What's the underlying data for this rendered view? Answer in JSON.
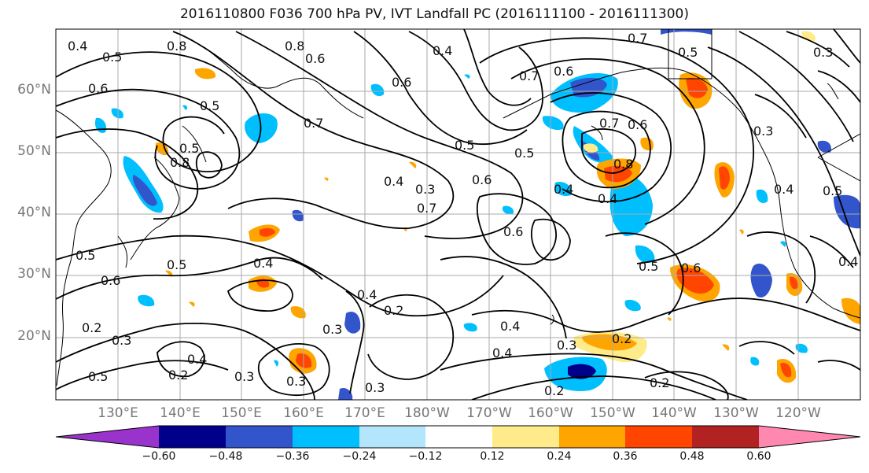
{
  "title": "2016110800 F036 700 hPa PV, IVT Landfall PC (2016111100 - 2016111300)",
  "lat_labels": [
    "60°N",
    "50°N",
    "40°N",
    "30°N",
    "20°N"
  ],
  "lon_labels": [
    "130°E",
    "140°E",
    "150°E",
    "160°E",
    "170°E",
    "180°W",
    "170°W",
    "160°W",
    "150°W",
    "140°W",
    "130°W",
    "120°W"
  ],
  "colorbar": {
    "ticks": [
      "−0.60",
      "−0.48",
      "−0.36",
      "−0.24",
      "−0.12",
      "0.12",
      "0.24",
      "0.36",
      "0.48",
      "0.60"
    ],
    "colors": [
      "#9933cc",
      "#00008b",
      "#3355cc",
      "#00bfff",
      "#b3e5fc",
      "#ffffff",
      "#ffeb8a",
      "#ffa500",
      "#ff4500",
      "#b22222",
      "#ff88b0"
    ],
    "extend": "both"
  },
  "contour_labels": [
    "0.4",
    "0.5",
    "0.8",
    "0.6",
    "0.5",
    "0.8",
    "0.6",
    "0.4",
    "0.6",
    "0.7",
    "0.5",
    "0.6",
    "0.7",
    "0.6",
    "0.5",
    "0.7",
    "0.4",
    "0.3",
    "0.6",
    "0.7",
    "0.8",
    "0.4",
    "0.7",
    "0.6",
    "0.5",
    "0.8",
    "0.5",
    "0.4",
    "0.5",
    "0.6",
    "0.5",
    "0.4",
    "0.4",
    "0.2",
    "0.3",
    "0.4",
    "0.2",
    "0.3",
    "0.2",
    "0.3",
    "0.5",
    "0.3",
    "0.4",
    "0.2",
    "0.3",
    "0.4",
    "0.3",
    "0.6",
    "0.5",
    "0.3",
    "0.2",
    "0.2",
    "0.4",
    "0.5",
    "0.3",
    "0.4"
  ]
}
